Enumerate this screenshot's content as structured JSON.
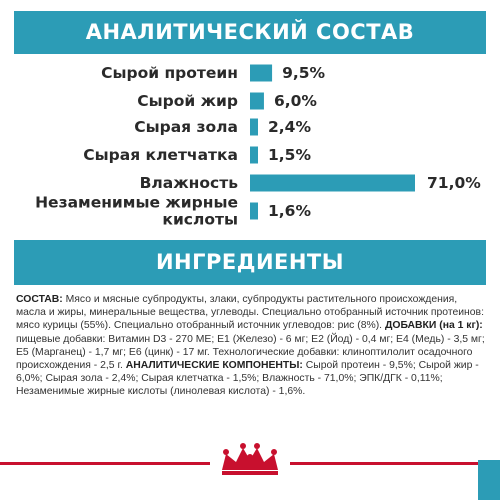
{
  "header": {
    "analysis_title": "АНАЛИТИЧЕСКИЙ СОСТАВ",
    "ingredients_title": "ИНГРЕДИЕНТЫ"
  },
  "colors": {
    "accent": "#2c9cb6",
    "brand_red": "#c8102e"
  },
  "chart_data": {
    "type": "bar",
    "orientation": "horizontal",
    "categories": [
      [
        "Сырой протеин"
      ],
      [
        "Сырой жир"
      ],
      [
        "Сырая зола"
      ],
      [
        "Сырая клетчатка"
      ],
      [
        "Влажность"
      ],
      [
        "Незаменимые жирные",
        "кислоты"
      ]
    ],
    "values": [
      9.5,
      6.0,
      2.4,
      1.5,
      71.0,
      1.6
    ],
    "value_labels": [
      "9,5%",
      "6,0%",
      "2,4%",
      "1,5%",
      "71,0%",
      "1,6%"
    ],
    "unit": "%",
    "grid": false,
    "legend": "none"
  },
  "ingredients": {
    "composition_label": "СОСТАВ:",
    "composition_text": "Мясо и мясные субпродукты, злаки, субпродукты растительного происхождения, масла и жиры, минеральные вещества, углеводы. Специально отобранный источник протеинов: мясо курицы (55%). Специально отобранный источник углеводов: рис (8%).",
    "additives_label": "ДОБАВКИ (на 1 кг):",
    "additives_text": "пищевые добавки: Витамин D3 - 270 МЕ; Е1 (Железо) - 6 мг; Е2 (Йод) - 0,4 мг; Е4 (Медь) - 3,5 мг; Е5 (Марганец) - 1,7 мг; Е6 (цинк) - 17 мг. Технологические добавки: клиноптилолит осадочного происхождения - 2,5 г.",
    "analytical_label": "АНАЛИТИЧЕСКИЕ КОМПОНЕНТЫ:",
    "analytical_text": "Сырой протеин - 9,5%; Сырой жир - 6,0%; Сырая зола - 2,4%; Сырая клетчатка - 1,5%; Влажность - 71,0%; ЭПК/ДГК - 0,11%; Незаменимые жирные кислоты (линолевая кислота) - 1,6%."
  },
  "logo": {
    "icon": "crown-icon"
  }
}
